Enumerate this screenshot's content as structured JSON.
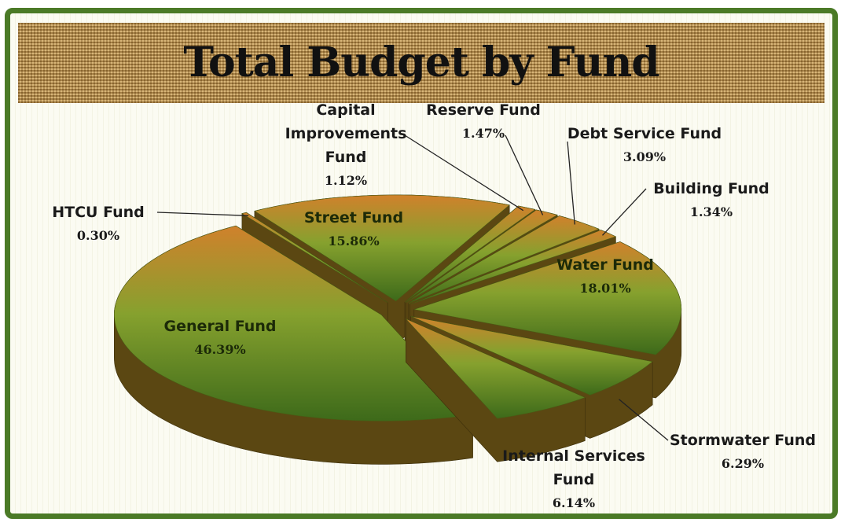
{
  "chart_data": {
    "type": "pie",
    "title": "Total Budget by Fund",
    "categories": [
      "General Fund",
      "HTCU Fund",
      "Street Fund",
      "Capital Improvements Fund",
      "Reserve Fund",
      "Debt Service Fund",
      "Building Fund",
      "Water Fund",
      "Stormwater Fund",
      "Internal Services Fund"
    ],
    "values": [
      46.39,
      0.3,
      15.86,
      1.12,
      1.47,
      3.09,
      1.34,
      18.01,
      6.29,
      6.14
    ],
    "value_labels": [
      "46.39%",
      "0.30%",
      "15.86%",
      "1.12%",
      "1.47%",
      "3.09%",
      "1.34%",
      "18.01%",
      "6.29%",
      "6.14%"
    ],
    "color": "#5f8a22"
  }
}
